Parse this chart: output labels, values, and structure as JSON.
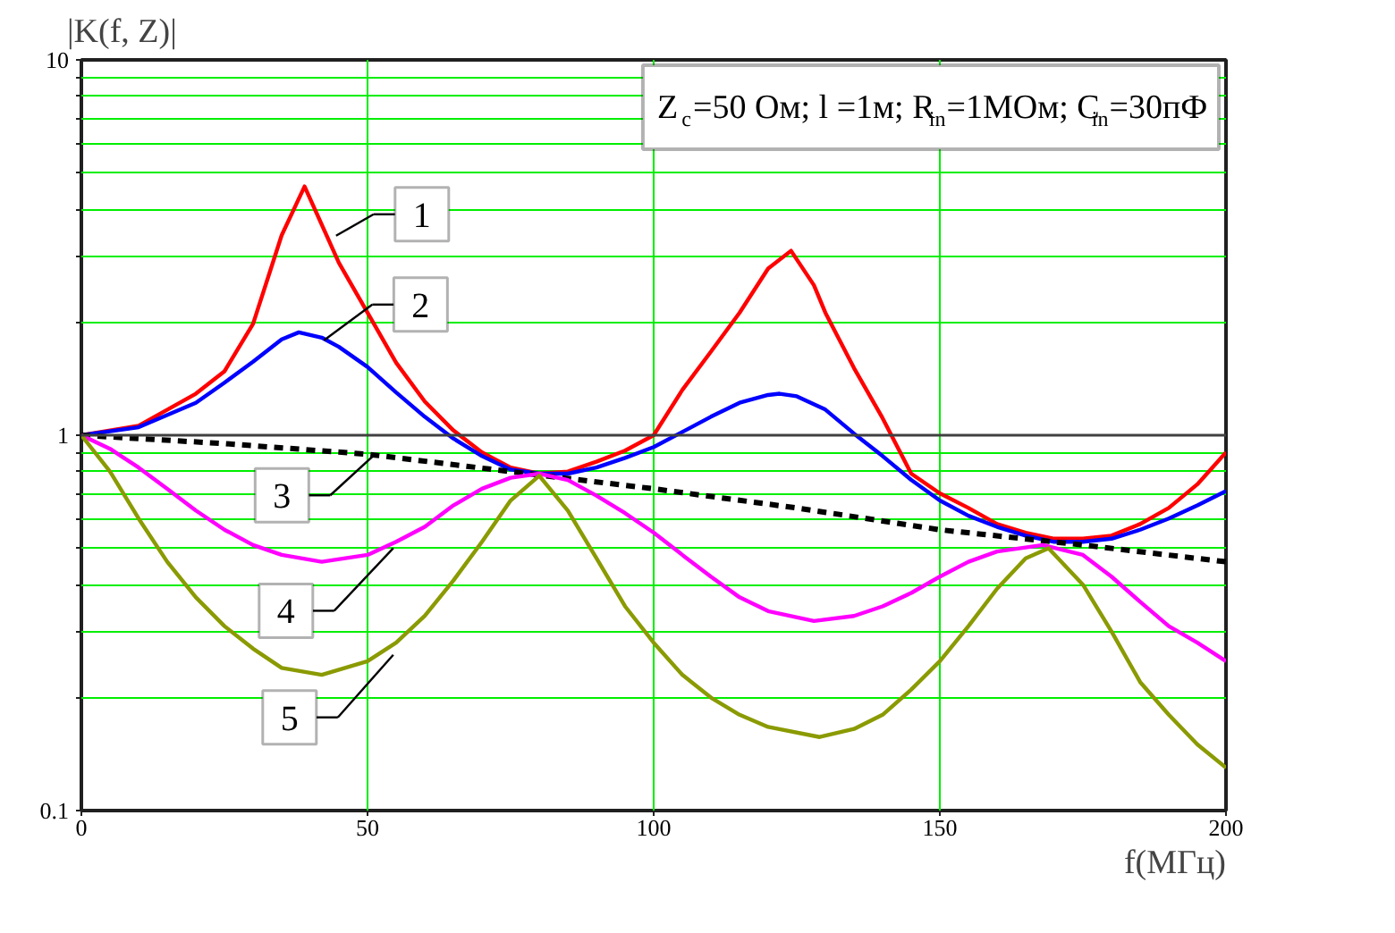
{
  "chart_data": {
    "type": "line",
    "title": "Z$_{c}$=50 Ом; l =1м; R$_{in}$=1МОм; C$_{in}$=30пФ",
    "xlabel": "f(МГц)",
    "ylabel": "|K(f, Z)|",
    "log": "y",
    "grid": true,
    "xlim": [
      0,
      200
    ],
    "xticks": [
      0,
      50,
      100,
      150,
      200
    ],
    "ylim": [
      0.1,
      10
    ],
    "yticks": [
      0.1,
      {
        "value": 0.2,
        "label": null
      },
      {
        "value": 0.3,
        "label": null
      },
      {
        "value": 0.4,
        "label": null
      },
      {
        "value": 0.5,
        "label": null
      },
      {
        "value": 0.6,
        "label": null
      },
      {
        "value": 0.7,
        "label": null
      },
      {
        "value": 0.8,
        "label": null
      },
      {
        "value": 0.9,
        "label": null
      },
      1,
      {
        "value": 2,
        "label": null
      },
      {
        "value": 3,
        "label": null
      },
      {
        "value": 4,
        "label": null
      },
      {
        "value": 5,
        "label": null
      },
      {
        "value": 6,
        "label": null
      },
      {
        "value": 7,
        "label": null
      },
      {
        "value": 8,
        "label": null
      },
      {
        "value": 9,
        "label": null
      },
      10
    ],
    "ref_lines": [
      {
        "axis": "y",
        "value": 1,
        "color": "#404040"
      }
    ],
    "series": [
      {
        "color": "#ff0000",
        "x": [
          0,
          10,
          20,
          25,
          30,
          35,
          39,
          45,
          50,
          55,
          60,
          65,
          70,
          75,
          80,
          85,
          90,
          95,
          100,
          105,
          110,
          115,
          120,
          124,
          128,
          130,
          135,
          140,
          145,
          150,
          155,
          160,
          165,
          170,
          175,
          180,
          185,
          190,
          195,
          200
        ],
        "values": [
          1.0,
          1.06,
          1.29,
          1.48,
          1.98,
          3.41,
          4.6,
          2.88,
          2.12,
          1.56,
          1.23,
          1.03,
          0.9,
          0.82,
          0.79,
          0.8,
          0.85,
          0.91,
          1.0,
          1.32,
          1.67,
          2.12,
          2.78,
          3.1,
          2.51,
          2.12,
          1.51,
          1.11,
          0.79,
          0.7,
          0.64,
          0.58,
          0.55,
          0.53,
          0.53,
          0.54,
          0.58,
          0.64,
          0.74,
          0.9
        ]
      },
      {
        "color": "#0000ff",
        "x": [
          0,
          10,
          20,
          25,
          30,
          35,
          38,
          42,
          45,
          50,
          55,
          60,
          65,
          70,
          75,
          80,
          85,
          90,
          95,
          100,
          105,
          110,
          115,
          120,
          122,
          125,
          130,
          135,
          140,
          145,
          150,
          155,
          160,
          165,
          170,
          175,
          180,
          185,
          190,
          195,
          200
        ],
        "values": [
          1.0,
          1.05,
          1.22,
          1.38,
          1.57,
          1.8,
          1.88,
          1.82,
          1.72,
          1.52,
          1.3,
          1.12,
          0.98,
          0.88,
          0.81,
          0.79,
          0.79,
          0.82,
          0.87,
          0.93,
          1.02,
          1.12,
          1.22,
          1.28,
          1.29,
          1.27,
          1.17,
          1.01,
          0.88,
          0.76,
          0.67,
          0.61,
          0.57,
          0.54,
          0.52,
          0.52,
          0.53,
          0.56,
          0.6,
          0.65,
          0.71
        ]
      },
      {
        "color": "#000000",
        "line_style": "dashed",
        "x": [
          0,
          25,
          50,
          75,
          100,
          125,
          150,
          175,
          200
        ],
        "values": [
          1.0,
          0.95,
          0.89,
          0.8,
          0.72,
          0.64,
          0.56,
          0.51,
          0.46
        ]
      },
      {
        "color": "#ff00ff",
        "x": [
          0,
          5,
          10,
          15,
          20,
          25,
          30,
          35,
          42,
          50,
          55,
          60,
          65,
          70,
          75,
          80,
          85,
          90,
          95,
          100,
          105,
          110,
          115,
          120,
          128,
          135,
          140,
          145,
          150,
          155,
          160,
          168,
          175,
          180,
          185,
          190,
          195,
          200
        ],
        "values": [
          1.0,
          0.92,
          0.82,
          0.72,
          0.63,
          0.56,
          0.51,
          0.48,
          0.46,
          0.48,
          0.52,
          0.57,
          0.65,
          0.72,
          0.77,
          0.79,
          0.76,
          0.69,
          0.62,
          0.55,
          0.48,
          0.42,
          0.37,
          0.34,
          0.32,
          0.33,
          0.35,
          0.38,
          0.42,
          0.46,
          0.49,
          0.51,
          0.48,
          0.42,
          0.36,
          0.31,
          0.28,
          0.25
        ]
      },
      {
        "color": "#8a9a00",
        "x": [
          0,
          5,
          10,
          15,
          20,
          25,
          30,
          35,
          42,
          50,
          55,
          60,
          65,
          70,
          75,
          80,
          85,
          90,
          95,
          100,
          105,
          110,
          115,
          120,
          129,
          135,
          140,
          145,
          150,
          155,
          160,
          165,
          169,
          175,
          180,
          185,
          190,
          195,
          200
        ],
        "values": [
          1.0,
          0.8,
          0.6,
          0.46,
          0.37,
          0.31,
          0.27,
          0.24,
          0.23,
          0.25,
          0.28,
          0.33,
          0.41,
          0.52,
          0.67,
          0.78,
          0.63,
          0.47,
          0.35,
          0.28,
          0.23,
          0.2,
          0.18,
          0.167,
          0.157,
          0.165,
          0.18,
          0.21,
          0.25,
          0.31,
          0.39,
          0.47,
          0.5,
          0.4,
          0.3,
          0.22,
          0.18,
          0.15,
          0.13
        ]
      }
    ],
    "annotations": [
      {
        "text": "1",
        "x": 44.5,
        "y": 3.4
      },
      {
        "text": "2",
        "x": 42.4,
        "y": 1.79
      },
      {
        "text": "3",
        "x": 51.3,
        "y": 0.89
      },
      {
        "text": "4",
        "x": 54.5,
        "y": 0.5
      },
      {
        "text": "5",
        "x": 54.5,
        "y": 0.26
      }
    ]
  }
}
